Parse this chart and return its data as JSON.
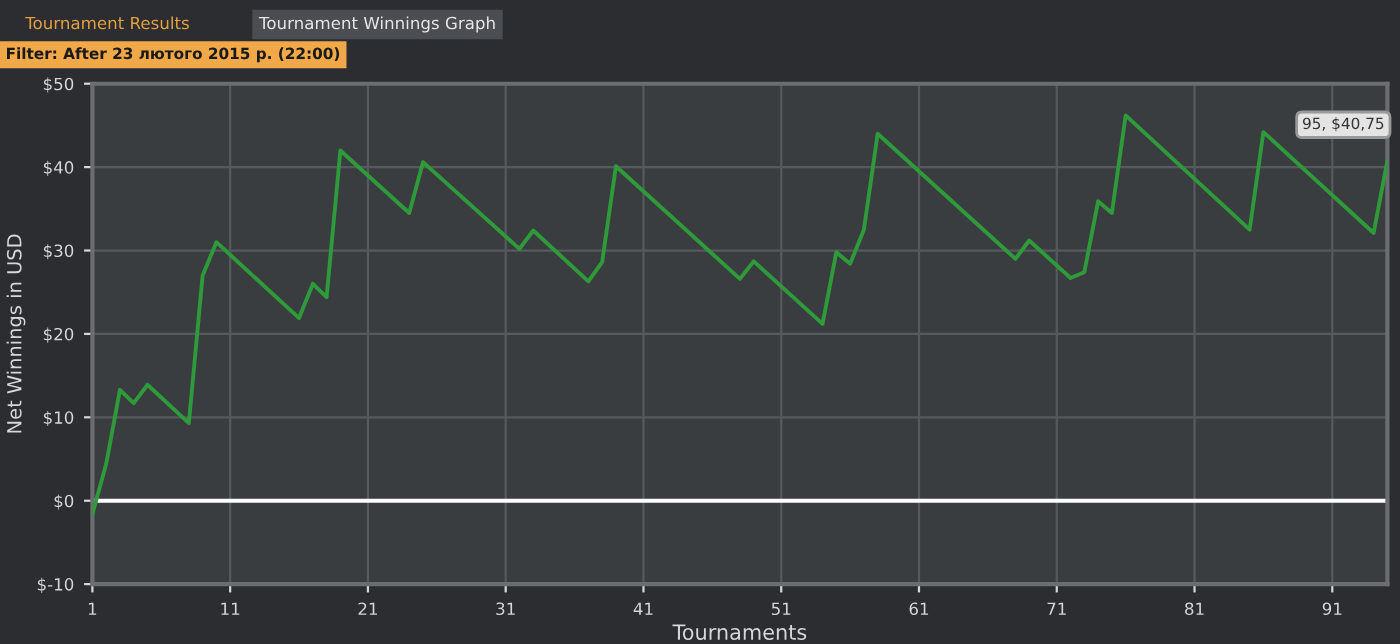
{
  "chart_data": {
    "type": "line",
    "xlabel": "Tournaments",
    "ylabel": "Net Winnings in USD",
    "annotations": [
      "Tournament Results",
      "Tournament Winnings Graph",
      "Filter: After 23 лютого 2015 р. (22:00)",
      {
        "text": "95, $40,75",
        "x": 95,
        "y": 40.75
      }
    ],
    "series": [
      {
        "color": "#2e9a3a",
        "x": [
          1,
          2,
          3,
          4,
          5,
          8,
          9,
          10,
          16,
          17,
          18,
          19,
          24,
          25,
          32,
          33,
          37,
          38,
          39,
          48,
          49,
          54,
          55,
          56,
          57,
          58,
          68,
          69,
          72,
          73,
          74,
          75,
          76,
          85,
          86,
          94,
          95
        ],
        "values": [
          -1.6,
          4.4,
          13.3,
          11.7,
          13.9,
          9.3,
          27,
          31,
          21.9,
          26,
          24.4,
          42,
          34.5,
          40.6,
          30.2,
          32.4,
          26.3,
          28.6,
          40.1,
          26.6,
          28.7,
          21.2,
          29.8,
          28.4,
          32.5,
          44,
          29,
          31.2,
          26.7,
          27.4,
          35.9,
          34.5,
          46.2,
          32.5,
          44.2,
          32.1,
          40.75
        ]
      }
    ],
    "xlim": [
      1,
      95
    ],
    "ylim": [
      -10,
      50
    ],
    "xticks": [
      1,
      11,
      21,
      31,
      41,
      51,
      61,
      71,
      81,
      91
    ],
    "yticks": [
      {
        "value": -10,
        "label": "$-10"
      },
      {
        "value": 0,
        "label": "$0"
      },
      {
        "value": 10,
        "label": "$10"
      },
      {
        "value": 20,
        "label": "$20"
      },
      {
        "value": 30,
        "label": "$30"
      },
      {
        "value": 40,
        "label": "$40"
      },
      {
        "value": 50,
        "label": "$50"
      }
    ],
    "ref_lines": [
      {
        "axis": "y",
        "value": 0,
        "color": "#ffffff"
      }
    ],
    "grid": true,
    "marker": "none",
    "line_style": "solid"
  }
}
